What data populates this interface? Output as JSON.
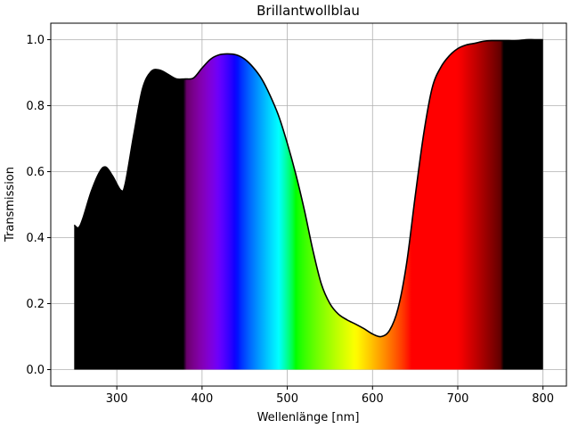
{
  "chart_data": {
    "type": "spectrum_area",
    "title": "Brillantwollblau",
    "xlabel": "Wellenlänge [nm]",
    "ylabel": "Transmission",
    "x": [
      250,
      255,
      260,
      270,
      280,
      287,
      295,
      305,
      310,
      320,
      330,
      340,
      350,
      360,
      370,
      380,
      390,
      400,
      410,
      420,
      430,
      440,
      450,
      460,
      470,
      480,
      490,
      500,
      510,
      520,
      530,
      540,
      550,
      560,
      570,
      580,
      590,
      600,
      610,
      620,
      630,
      640,
      650,
      660,
      670,
      680,
      690,
      700,
      710,
      720,
      730,
      740,
      750,
      760,
      770,
      780,
      790,
      800
    ],
    "values": [
      0.438,
      0.43,
      0.457,
      0.54,
      0.6,
      0.614,
      0.587,
      0.543,
      0.565,
      0.714,
      0.85,
      0.903,
      0.908,
      0.895,
      0.881,
      0.881,
      0.884,
      0.914,
      0.941,
      0.954,
      0.957,
      0.954,
      0.941,
      0.916,
      0.881,
      0.83,
      0.768,
      0.686,
      0.592,
      0.484,
      0.362,
      0.259,
      0.2,
      0.168,
      0.151,
      0.138,
      0.124,
      0.108,
      0.1,
      0.119,
      0.186,
      0.322,
      0.524,
      0.714,
      0.854,
      0.916,
      0.951,
      0.973,
      0.984,
      0.989,
      0.995,
      0.997,
      0.997,
      0.997,
      0.997,
      1.0,
      1.0,
      1.0
    ],
    "color": "#000000",
    "xlim": [
      222.5,
      827.5
    ],
    "ylim": [
      -0.05,
      1.05
    ],
    "xticks": [
      300,
      400,
      500,
      600,
      700,
      800
    ],
    "yticks": [
      {
        "value": 0,
        "label": "0.0"
      },
      0.2,
      0.4,
      0.6,
      0.8,
      {
        "value": 1,
        "label": "1.0"
      }
    ],
    "grid": true
  }
}
